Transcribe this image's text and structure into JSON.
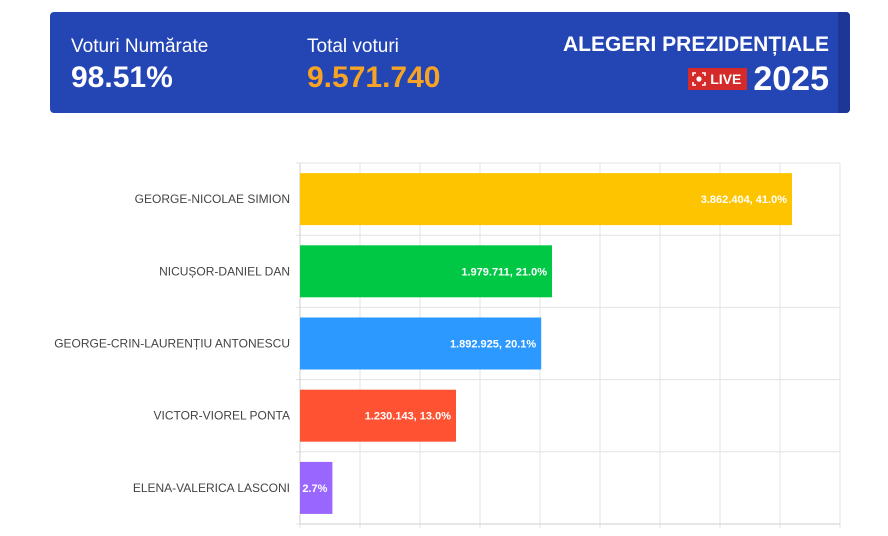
{
  "header": {
    "counted_label": "Voturi Numărate",
    "counted_value": "98.51%",
    "total_label": "Total voturi",
    "total_value": "9.571.740",
    "title": "ALEGERI PREZIDENȚIALE",
    "live_label": "LIVE",
    "year": "2025",
    "colors": {
      "background": "#2445b4",
      "total_value": "#f7a325",
      "live_badge": "#d42a2a"
    }
  },
  "chart_data": {
    "type": "bar",
    "orientation": "horizontal",
    "title": "",
    "xlabel": "",
    "ylabel": "",
    "xlim": [
      0,
      45
    ],
    "grid": true,
    "legend": "none",
    "categories": [
      "GEORGE-NICOLAE SIMION",
      "NICUȘOR-DANIEL DAN",
      "GEORGE-CRIN-LAURENȚIU ANTONESCU",
      "VICTOR-VIOREL PONTA",
      "ELENA-VALERICA LASCONI"
    ],
    "values": [
      41.0,
      21.0,
      20.1,
      13.0,
      2.7
    ],
    "votes": [
      3862404,
      1979711,
      1892925,
      1230143,
      null
    ],
    "data_labels": [
      "3.862.404, 41.0%",
      "1.979.711, 21.0%",
      "1.892.925, 20.1%",
      "1.230.143, 13.0%",
      "2.7%"
    ],
    "colors": [
      "#ffc400",
      "#00c845",
      "#2b99ff",
      "#ff5233",
      "#9966ff"
    ]
  }
}
